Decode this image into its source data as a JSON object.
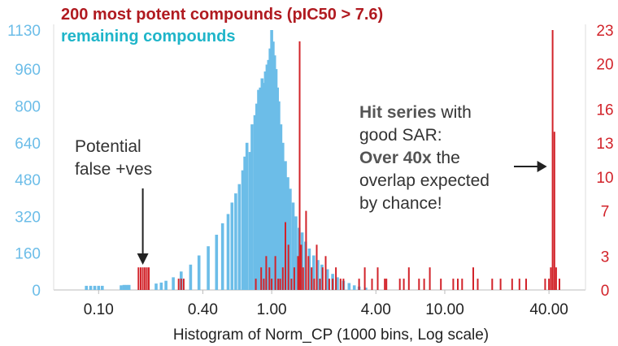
{
  "chart_data": {
    "type": "bar",
    "x_scale": "log",
    "x_ticks": [
      {
        "value": 0.1,
        "label": "0.10"
      },
      {
        "value": 0.4,
        "label": "0.40"
      },
      {
        "value": 1.0,
        "label": "1.00"
      },
      {
        "value": 4.0,
        "label": "4.00"
      },
      {
        "value": 10.0,
        "label": "10.00"
      },
      {
        "value": 40.0,
        "label": "40.00"
      }
    ],
    "xlim": [
      0.055,
      65
    ],
    "xlabel": "Histogram of Norm_CP (1000 bins, Log scale)",
    "y_left": {
      "ticks": [
        0,
        160,
        320,
        480,
        640,
        800,
        960,
        1130
      ],
      "tick_labels": [
        "0",
        "160",
        "320",
        "480",
        "640",
        "800",
        "960",
        "1130"
      ],
      "ylim": [
        0,
        1130
      ],
      "color": "#6cbde8"
    },
    "y_right": {
      "ticks": [
        0,
        3,
        7,
        10,
        13,
        16,
        20,
        23
      ],
      "tick_labels": [
        "0",
        "3",
        "7",
        "10",
        "13",
        "16",
        "20",
        "23"
      ],
      "ylim": [
        0,
        23
      ],
      "color": "#d2232a"
    },
    "legend": [
      "200 most potent compounds (pIC50 > 7.6)",
      "remaining compounds"
    ],
    "legend_colors": [
      "#b01a20",
      "#1fb5c9"
    ],
    "grid": false,
    "series": [
      {
        "name": "remaining compounds",
        "axis": "left",
        "color": "#6cbde8",
        "x": [
          0.085,
          0.09,
          0.095,
          0.1,
          0.105,
          0.135,
          0.14,
          0.145,
          0.15,
          0.215,
          0.23,
          0.245,
          0.27,
          0.3,
          0.34,
          0.38,
          0.43,
          0.48,
          0.52,
          0.56,
          0.59,
          0.62,
          0.65,
          0.68,
          0.7,
          0.72,
          0.75,
          0.77,
          0.8,
          0.82,
          0.84,
          0.86,
          0.88,
          0.9,
          0.92,
          0.94,
          0.96,
          0.98,
          1.0,
          1.02,
          1.04,
          1.06,
          1.08,
          1.1,
          1.13,
          1.16,
          1.2,
          1.24,
          1.28,
          1.33,
          1.38,
          1.44,
          1.5,
          1.57,
          1.65,
          1.75,
          1.85,
          1.95,
          2.1,
          2.25,
          2.4,
          2.6,
          2.8,
          3.0,
          3.2,
          3.5
        ],
        "values": [
          18,
          18,
          18,
          18,
          18,
          20,
          22,
          22,
          22,
          28,
          32,
          40,
          55,
          80,
          110,
          150,
          190,
          240,
          290,
          330,
          380,
          420,
          460,
          520,
          580,
          640,
          600,
          720,
          760,
          810,
          870,
          880,
          920,
          900,
          950,
          980,
          1000,
          1050,
          1130,
          1080,
          1020,
          960,
          880,
          820,
          720,
          640,
          560,
          490,
          440,
          380,
          320,
          270,
          250,
          210,
          180,
          150,
          130,
          110,
          90,
          70,
          55,
          40,
          30,
          20,
          15,
          10
        ]
      },
      {
        "name": "200 most potent compounds (pIC50 > 7.6)",
        "axis": "right",
        "color": "#d2232a",
        "x": [
          0.17,
          0.175,
          0.18,
          0.185,
          0.19,
          0.195,
          0.29,
          0.3,
          0.31,
          0.81,
          0.87,
          0.9,
          0.93,
          0.97,
          1.0,
          1.05,
          1.09,
          1.12,
          1.16,
          1.2,
          1.25,
          1.3,
          1.35,
          1.42,
          1.45,
          1.48,
          1.52,
          1.58,
          1.63,
          1.7,
          1.76,
          1.82,
          1.9,
          1.97,
          2.05,
          2.15,
          2.25,
          2.35,
          2.5,
          2.6,
          3.2,
          3.45,
          3.8,
          4.1,
          4.5,
          4.6,
          5.5,
          5.8,
          6.2,
          7.1,
          7.6,
          8.2,
          9.5,
          11.2,
          11.9,
          12.6,
          14.6,
          15.5,
          18.8,
          21,
          24.5,
          27,
          29.5,
          38,
          40,
          41,
          42,
          43,
          44,
          46
        ],
        "values": [
          2,
          2,
          2,
          2,
          2,
          2,
          1,
          1,
          1,
          1,
          2,
          1,
          3,
          2,
          1,
          3,
          1,
          1,
          2,
          6,
          4,
          1,
          2,
          3,
          22,
          4,
          2,
          7,
          3,
          2,
          1,
          4,
          1,
          2,
          3,
          1,
          1,
          2,
          1,
          1,
          1,
          2,
          1,
          2,
          1,
          1,
          1,
          1,
          2,
          1,
          1,
          2,
          1,
          1,
          1,
          1,
          2,
          1,
          1,
          1,
          1,
          1,
          1,
          1,
          1,
          2,
          23,
          14,
          2,
          1
        ]
      }
    ],
    "annotations": [
      {
        "lines": [
          [
            {
              "text": "Potential",
              "bold": false
            }
          ],
          [
            {
              "text": "false +ves",
              "bold": false
            }
          ]
        ],
        "points_to_x": 0.18
      },
      {
        "lines": [
          [
            {
              "text": "Hit series",
              "bold": true
            },
            {
              "text": " with",
              "bold": false
            }
          ],
          [
            {
              "text": "good SAR:",
              "bold": false
            }
          ],
          [
            {
              "text": "Over 40x",
              "bold": true
            },
            {
              "text": " the",
              "bold": false
            }
          ],
          [
            {
              "text": "overlap expected",
              "bold": false
            }
          ],
          [
            {
              "text": "by chance!",
              "bold": false
            }
          ]
        ],
        "points_to_x": 42
      }
    ]
  }
}
